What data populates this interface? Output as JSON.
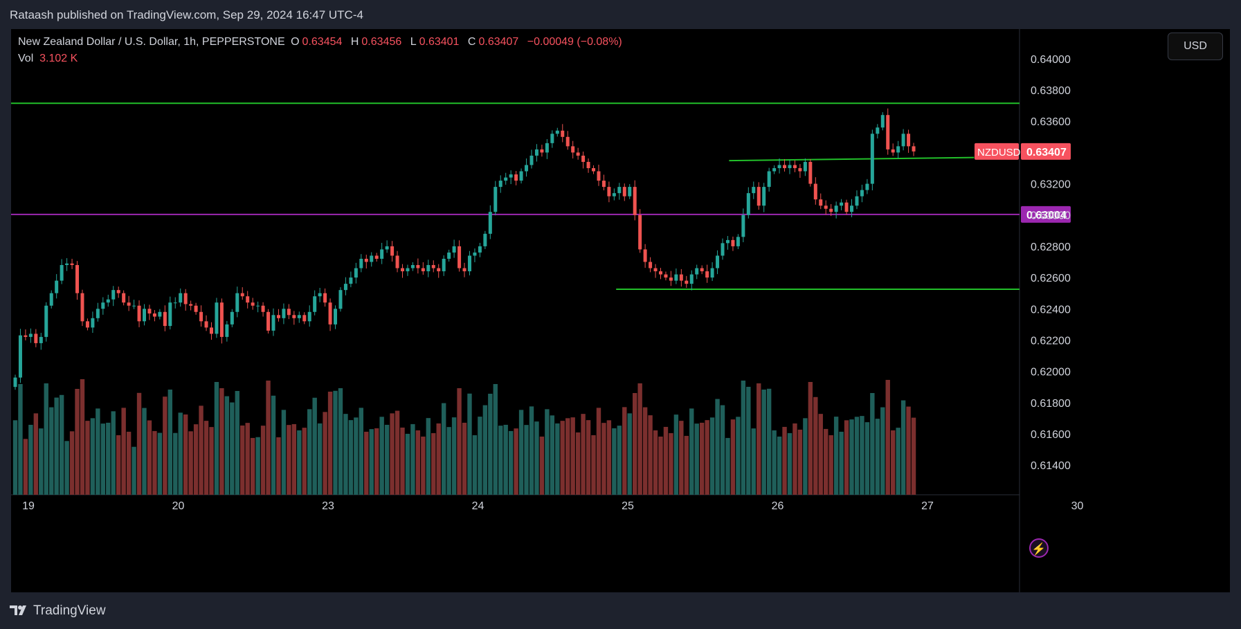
{
  "header": {
    "published_text": "Rataash published on TradingView.com, Sep 29, 2024 16:47 UTC-4"
  },
  "legend": {
    "title": "New Zealand Dollar / U.S. Dollar, 1h, PEPPERSTONE",
    "open_label": "O",
    "open": "0.63454",
    "high_label": "H",
    "high": "0.63456",
    "low_label": "L",
    "low": "0.63401",
    "close_label": "C",
    "close": "0.63407",
    "change": "−0.00049 (−0.08%)",
    "vol_label": "Vol",
    "vol_value": "3.102 K"
  },
  "currency_button": "USD",
  "brand": "TradingView",
  "chart_data": {
    "type": "candlestick",
    "symbol": "NZDUSD",
    "interval": "1h",
    "yaxis": {
      "ticks": [
        "0.64000",
        "0.63800",
        "0.63600",
        "0.63400",
        "0.63200",
        "0.63000",
        "0.62800",
        "0.62600",
        "0.62400",
        "0.62200",
        "0.62000",
        "0.61800",
        "0.61600",
        "0.61400"
      ],
      "ylim": [
        0.6121,
        0.6419
      ]
    },
    "xaxis": {
      "ticks": [
        "19",
        "20",
        "23",
        "24",
        "25",
        "26",
        "27",
        "30"
      ]
    },
    "last_price": {
      "symbol": "NZDUSD",
      "label": "0.63407",
      "value": 0.63407,
      "color": "#f7525f"
    },
    "lines": [
      {
        "name": "resistance",
        "y1": 0.63715,
        "y2": 0.63715,
        "from": 0,
        "to": 1,
        "color": "#22c02a"
      },
      {
        "name": "support-mid",
        "y1": 0.63348,
        "y2": 0.63368,
        "from": 0.712,
        "to": 0.955,
        "color": "#22c02a"
      },
      {
        "name": "support-low",
        "y1": 0.62525,
        "y2": 0.62525,
        "from": 0.6,
        "to": 1,
        "color": "#22c02a"
      },
      {
        "name": "pivot",
        "y1": 0.63004,
        "y2": 0.63004,
        "from": 0,
        "to": 1,
        "color": "#9c27b0",
        "label": "0.63004"
      }
    ],
    "closes": [
      0.6196,
      0.6223,
      0.6222,
      0.6224,
      0.6218,
      0.6222,
      0.6242,
      0.625,
      0.6258,
      0.6268,
      0.6269,
      0.6268,
      0.625,
      0.6232,
      0.6228,
      0.6234,
      0.624,
      0.6244,
      0.6246,
      0.6252,
      0.625,
      0.6244,
      0.6242,
      0.6242,
      0.6232,
      0.624,
      0.6237,
      0.6235,
      0.6238,
      0.6229,
      0.6244,
      0.6244,
      0.625,
      0.6243,
      0.6242,
      0.6238,
      0.6232,
      0.6228,
      0.6224,
      0.6244,
      0.6222,
      0.623,
      0.6238,
      0.625,
      0.6248,
      0.6244,
      0.6242,
      0.6242,
      0.6238,
      0.6226,
      0.6236,
      0.6234,
      0.624,
      0.6236,
      0.6234,
      0.6236,
      0.6232,
      0.6238,
      0.6248,
      0.625,
      0.6244,
      0.623,
      0.624,
      0.6252,
      0.6256,
      0.626,
      0.6266,
      0.6272,
      0.627,
      0.6274,
      0.6272,
      0.6278,
      0.628,
      0.6274,
      0.6266,
      0.6264,
      0.6266,
      0.6268,
      0.6266,
      0.6264,
      0.6268,
      0.6266,
      0.6264,
      0.6272,
      0.6276,
      0.628,
      0.6266,
      0.6264,
      0.6274,
      0.6276,
      0.628,
      0.6288,
      0.6302,
      0.6318,
      0.6322,
      0.6324,
      0.6326,
      0.6322,
      0.6328,
      0.6332,
      0.6338,
      0.6342,
      0.634,
      0.6346,
      0.6352,
      0.6354,
      0.635,
      0.6344,
      0.634,
      0.6338,
      0.6334,
      0.633,
      0.6328,
      0.6322,
      0.6318,
      0.6312,
      0.6314,
      0.6318,
      0.6312,
      0.6318,
      0.63,
      0.6278,
      0.627,
      0.6266,
      0.6264,
      0.6262,
      0.626,
      0.6258,
      0.6262,
      0.6258,
      0.6256,
      0.6262,
      0.6266,
      0.6264,
      0.626,
      0.6266,
      0.6274,
      0.6282,
      0.6284,
      0.628,
      0.6286,
      0.63,
      0.6314,
      0.6318,
      0.6306,
      0.6318,
      0.6328,
      0.633,
      0.6332,
      0.633,
      0.6332,
      0.633,
      0.6328,
      0.6334,
      0.632,
      0.631,
      0.6306,
      0.6304,
      0.6302,
      0.6306,
      0.6308,
      0.6302,
      0.6306,
      0.6312,
      0.6316,
      0.632,
      0.6352,
      0.6356,
      0.6364,
      0.6342,
      0.634,
      0.6344,
      0.6352,
      0.6344,
      0.63407
    ]
  }
}
